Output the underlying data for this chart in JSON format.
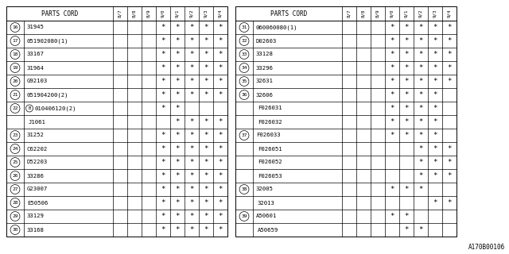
{
  "left_table": {
    "rows": [
      {
        "num": "16",
        "part": "31945",
        "marks": [
          0,
          0,
          0,
          1,
          1,
          1,
          1,
          1
        ]
      },
      {
        "num": "17",
        "part": "051902080(1)",
        "marks": [
          0,
          0,
          0,
          1,
          1,
          1,
          1,
          1
        ]
      },
      {
        "num": "18",
        "part": "33167",
        "marks": [
          0,
          0,
          0,
          1,
          1,
          1,
          1,
          1
        ]
      },
      {
        "num": "19",
        "part": "31964",
        "marks": [
          0,
          0,
          0,
          1,
          1,
          1,
          1,
          1
        ]
      },
      {
        "num": "20",
        "part": "G92103",
        "marks": [
          0,
          0,
          0,
          1,
          1,
          1,
          1,
          1
        ]
      },
      {
        "num": "21",
        "part": "051904200(2)",
        "marks": [
          0,
          0,
          0,
          1,
          1,
          1,
          1,
          1
        ]
      },
      {
        "num": "22",
        "part": "B010406120(2)",
        "marks": [
          0,
          0,
          0,
          1,
          1,
          0,
          0,
          0
        ],
        "b_prefix": true
      },
      {
        "num": "",
        "part": "J1061",
        "marks": [
          0,
          0,
          0,
          0,
          1,
          1,
          1,
          1
        ]
      },
      {
        "num": "23",
        "part": "31252",
        "marks": [
          0,
          0,
          0,
          1,
          1,
          1,
          1,
          1
        ]
      },
      {
        "num": "24",
        "part": "C62202",
        "marks": [
          0,
          0,
          0,
          1,
          1,
          1,
          1,
          1
        ]
      },
      {
        "num": "25",
        "part": "D52203",
        "marks": [
          0,
          0,
          0,
          1,
          1,
          1,
          1,
          1
        ]
      },
      {
        "num": "26",
        "part": "33286",
        "marks": [
          0,
          0,
          0,
          1,
          1,
          1,
          1,
          1
        ]
      },
      {
        "num": "27",
        "part": "G23007",
        "marks": [
          0,
          0,
          0,
          1,
          1,
          1,
          1,
          1
        ]
      },
      {
        "num": "28",
        "part": "E50506",
        "marks": [
          0,
          0,
          0,
          1,
          1,
          1,
          1,
          1
        ]
      },
      {
        "num": "29",
        "part": "33129",
        "marks": [
          0,
          0,
          0,
          1,
          1,
          1,
          1,
          1
        ]
      },
      {
        "num": "30",
        "part": "33168",
        "marks": [
          0,
          0,
          0,
          1,
          1,
          1,
          1,
          1
        ]
      }
    ]
  },
  "right_table": {
    "rows": [
      {
        "num": "31",
        "part": "060060080(1)",
        "marks": [
          0,
          0,
          0,
          1,
          1,
          1,
          1,
          1
        ]
      },
      {
        "num": "32",
        "part": "D02603",
        "marks": [
          0,
          0,
          0,
          1,
          1,
          1,
          1,
          1
        ]
      },
      {
        "num": "33",
        "part": "33128",
        "marks": [
          0,
          0,
          0,
          1,
          1,
          1,
          1,
          1
        ]
      },
      {
        "num": "34",
        "part": "33296",
        "marks": [
          0,
          0,
          0,
          1,
          1,
          1,
          1,
          1
        ]
      },
      {
        "num": "35",
        "part": "32631",
        "marks": [
          0,
          0,
          0,
          1,
          1,
          1,
          1,
          1
        ]
      },
      {
        "num": "36",
        "part": "32606",
        "marks": [
          0,
          0,
          0,
          1,
          1,
          1,
          1,
          0
        ]
      },
      {
        "num": "",
        "part": "F026031",
        "marks": [
          0,
          0,
          0,
          1,
          1,
          1,
          1,
          0
        ]
      },
      {
        "num": "",
        "part": "F026032",
        "marks": [
          0,
          0,
          0,
          1,
          1,
          1,
          1,
          0
        ]
      },
      {
        "num": "37",
        "part": "F026033",
        "marks": [
          0,
          0,
          0,
          1,
          1,
          1,
          1,
          0
        ]
      },
      {
        "num": "",
        "part": "F026051",
        "marks": [
          0,
          0,
          0,
          0,
          0,
          1,
          1,
          1
        ]
      },
      {
        "num": "",
        "part": "F026052",
        "marks": [
          0,
          0,
          0,
          0,
          0,
          1,
          1,
          1
        ]
      },
      {
        "num": "",
        "part": "F026053",
        "marks": [
          0,
          0,
          0,
          0,
          0,
          1,
          1,
          1
        ]
      },
      {
        "num": "38",
        "part": "32005",
        "marks": [
          0,
          0,
          0,
          1,
          1,
          1,
          0,
          0
        ]
      },
      {
        "num": "",
        "part": "32013",
        "marks": [
          0,
          0,
          0,
          0,
          0,
          0,
          1,
          1
        ]
      },
      {
        "num": "39",
        "part": "A50601",
        "marks": [
          0,
          0,
          0,
          1,
          1,
          0,
          0,
          0
        ]
      },
      {
        "num": "",
        "part": "A50659",
        "marks": [
          0,
          0,
          0,
          0,
          1,
          1,
          0,
          0
        ]
      }
    ]
  },
  "year_cols": [
    "8/7",
    "8/8",
    "8/9",
    "9/0",
    "9/1",
    "9/2",
    "9/3",
    "9/4"
  ],
  "watermark": "A170B00106"
}
